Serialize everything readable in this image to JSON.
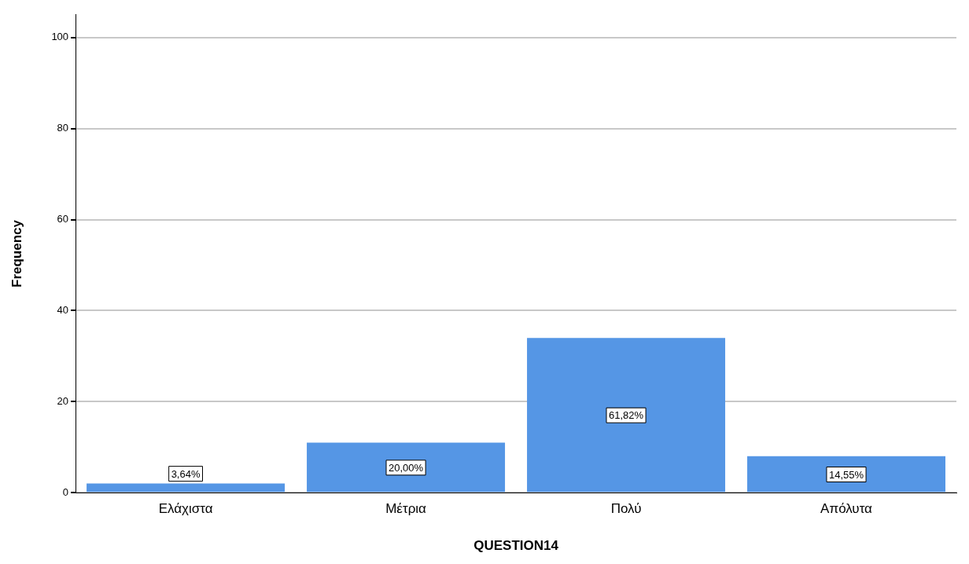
{
  "chart_data": {
    "type": "bar",
    "xlabel": "QUESTION14",
    "ylabel": "Frequency",
    "categories": [
      "Ελάχιστα",
      "Μέτρια",
      "Πολύ",
      "Απόλυτα"
    ],
    "values": [
      2,
      11,
      34,
      8
    ],
    "color": "#5596e5",
    "annotations": [
      "3,64%",
      "20,00%",
      "61,82%",
      "14,55%"
    ],
    "ylim": [
      0,
      105
    ],
    "yticks": [
      0,
      20,
      40,
      60,
      80,
      100
    ],
    "grid": "y",
    "legend": false
  }
}
